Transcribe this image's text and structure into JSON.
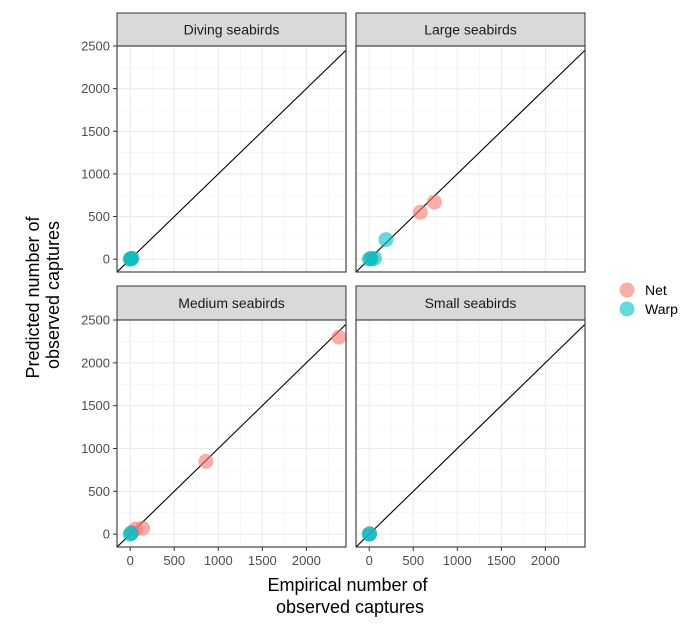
{
  "chart_data": {
    "type": "scatter",
    "xlabel_lines": [
      "Empirical number of",
      "observed captures"
    ],
    "ylabel_lines": [
      "Predicted number of",
      "observed captures"
    ],
    "xlim": [
      -150,
      2450
    ],
    "ylim": [
      -150,
      2500
    ],
    "x_ticks": [
      0,
      500,
      1000,
      1500,
      2000
    ],
    "y_ticks": [
      0,
      500,
      1000,
      1500,
      2000,
      2500
    ],
    "x_tick_labels": [
      "0",
      "500",
      "1000",
      "1500",
      "2000"
    ],
    "y_tick_labels": [
      "0",
      "500",
      "1000",
      "1500",
      "2000",
      "2500"
    ],
    "reference_line": "y = x",
    "grid": true,
    "legend_position": "right",
    "series": [
      {
        "name": "Net",
        "color": "#F8766D"
      },
      {
        "name": "Warp",
        "color": "#00BFC4"
      }
    ],
    "panels": [
      {
        "title": "Diving seabirds",
        "points": [
          {
            "series": "Net",
            "x": 5,
            "y": 5
          },
          {
            "series": "Net",
            "x": 15,
            "y": 10
          },
          {
            "series": "Warp",
            "x": 0,
            "y": 0
          },
          {
            "series": "Warp",
            "x": 8,
            "y": 5
          },
          {
            "series": "Warp",
            "x": 20,
            "y": 10
          }
        ]
      },
      {
        "title": "Large seabirds",
        "points": [
          {
            "series": "Net",
            "x": 740,
            "y": 670
          },
          {
            "series": "Net",
            "x": 580,
            "y": 550
          },
          {
            "series": "Net",
            "x": 20,
            "y": 10
          },
          {
            "series": "Warp",
            "x": 190,
            "y": 230
          },
          {
            "series": "Warp",
            "x": 60,
            "y": 10
          },
          {
            "series": "Warp",
            "x": 20,
            "y": 5
          },
          {
            "series": "Warp",
            "x": 0,
            "y": 0
          }
        ]
      },
      {
        "title": "Medium seabirds",
        "points": [
          {
            "series": "Net",
            "x": 2370,
            "y": 2300
          },
          {
            "series": "Net",
            "x": 860,
            "y": 850
          },
          {
            "series": "Net",
            "x": 140,
            "y": 70
          },
          {
            "series": "Net",
            "x": 60,
            "y": 60
          },
          {
            "series": "Net",
            "x": 20,
            "y": 20
          },
          {
            "series": "Warp",
            "x": 10,
            "y": 10
          },
          {
            "series": "Warp",
            "x": 0,
            "y": 0
          }
        ]
      },
      {
        "title": "Small seabirds",
        "points": [
          {
            "series": "Net",
            "x": 5,
            "y": 5
          },
          {
            "series": "Warp",
            "x": 0,
            "y": 0
          },
          {
            "series": "Warp",
            "x": 5,
            "y": 3
          }
        ]
      }
    ]
  }
}
